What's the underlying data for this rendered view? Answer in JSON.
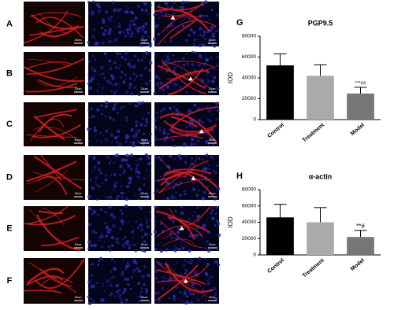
{
  "figure": {
    "row_labels": [
      "A",
      "B",
      "C",
      "D",
      "E",
      "F"
    ],
    "scale_bar_label": "20um"
  },
  "chart_data": [
    {
      "type": "bar",
      "panel": "G",
      "title": "PGP9.5",
      "y_label": "IOD",
      "categories": [
        "Control",
        "Treatment",
        "Model"
      ],
      "values": [
        52000,
        42000,
        25000
      ],
      "errors": [
        11000,
        10500,
        6000
      ],
      "colors": [
        "#000000",
        "#aaaaaa",
        "#777777"
      ],
      "annotation": "***##",
      "ylim": [
        0,
        80000
      ],
      "yticks": [
        0,
        20000,
        40000,
        60000,
        80000
      ]
    },
    {
      "type": "bar",
      "panel": "H",
      "title": "α-actin",
      "y_label": "IOD",
      "categories": [
        "Control",
        "Treatment",
        "Model"
      ],
      "values": [
        46000,
        40000,
        22000
      ],
      "errors": [
        16000,
        18000,
        8000
      ],
      "colors": [
        "#000000",
        "#aaaaaa",
        "#777777"
      ],
      "annotation": "**#",
      "ylim": [
        0,
        80000
      ],
      "yticks": [
        0,
        20000,
        40000,
        60000,
        80000
      ]
    }
  ]
}
